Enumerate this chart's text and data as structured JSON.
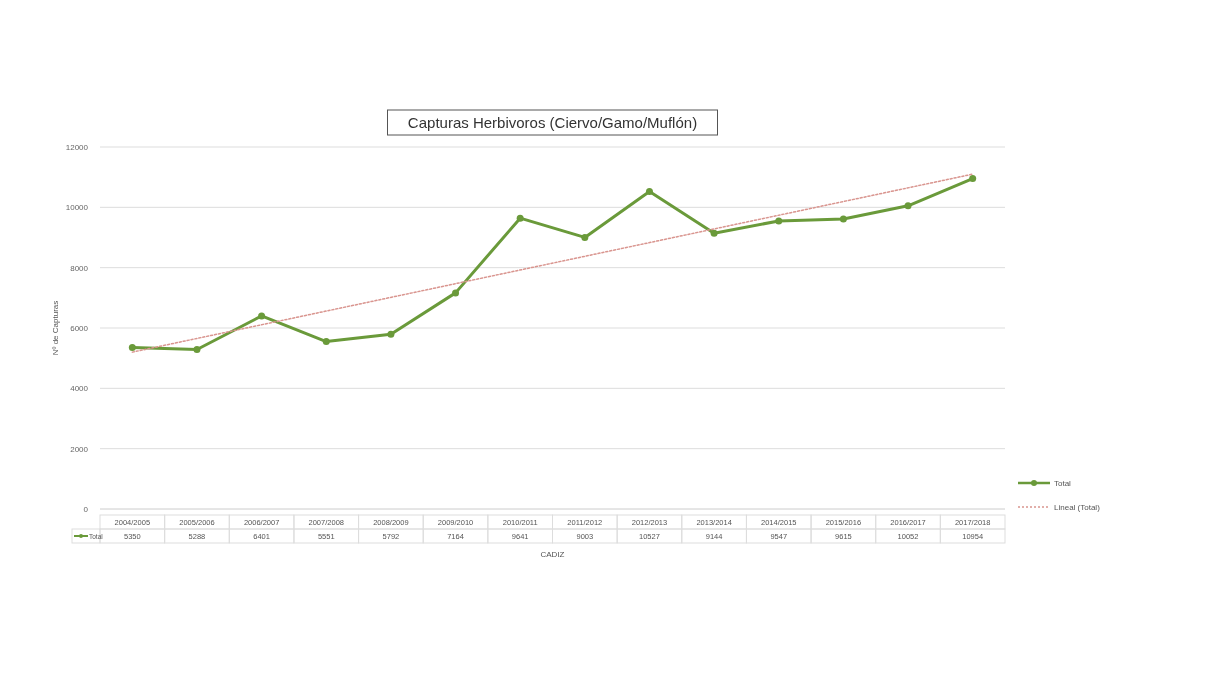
{
  "chart_data": {
    "type": "line",
    "title": "Capturas Herbivoros (Ciervo/Gamo/Muflón)",
    "xlabel": "CADIZ",
    "ylabel": "Nº de Capturas",
    "categories": [
      "2004/2005",
      "2005/2006",
      "2006/2007",
      "2007/2008",
      "2008/2009",
      "2009/2010",
      "2010/2011",
      "2011/2012",
      "2012/2013",
      "2013/2014",
      "2014/2015",
      "2015/2016",
      "2016/2017",
      "2017/2018"
    ],
    "series": [
      {
        "name": "Total",
        "color": "#6a9a3a",
        "marker": "circle",
        "line_style": "solid",
        "values": [
          5350,
          5288,
          6401,
          5551,
          5792,
          7164,
          9641,
          9003,
          10527,
          9144,
          9547,
          9615,
          10052,
          10954
        ],
        "value_labels": [
          "5350",
          "5288",
          "6401",
          "5551",
          "5792",
          "7164",
          "9641",
          "9003",
          "10527",
          "9144",
          "9547",
          "9615",
          "10052",
          "10954"
        ]
      },
      {
        "name": "Lineal (Total)",
        "color": "#d9958f",
        "marker": "none",
        "line_style": "dotted",
        "x": [
          "2004/2005",
          "2017/2018"
        ],
        "values": [
          5200,
          11100
        ]
      }
    ],
    "ylim": [
      0,
      12000
    ],
    "yticks": [
      0,
      2000,
      4000,
      6000,
      8000,
      10000,
      12000
    ],
    "grid": "y",
    "legend": "right"
  }
}
